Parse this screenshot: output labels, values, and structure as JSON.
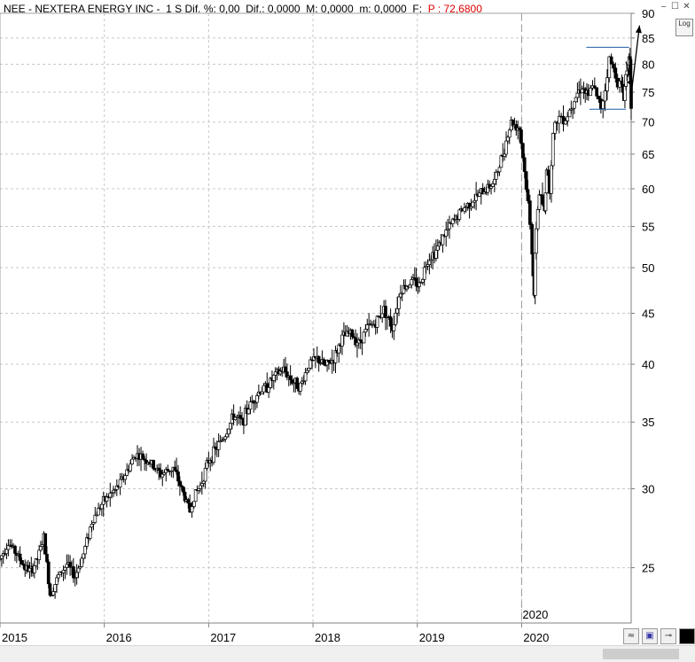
{
  "header": {
    "ticker": "NEE - NEXTERA ENERGY INC -",
    "timeframe": "1 S",
    "dif_pct": "Dif. %: 0,00",
    "dif": "Dif.: 0,0000",
    "max": "M: 0,0000",
    "min": "m: 0,0000",
    "f": "F:",
    "price": "P : 72,6800"
  },
  "controls": {
    "log": "Log"
  },
  "colors": {
    "candles": "#000000",
    "hlines": "#1f5fa8",
    "price": "#e00000",
    "grid": "#c8c8c8"
  },
  "chart_data": {
    "type": "candlestick-line",
    "yscale": "log",
    "ylim": [
      22,
      90
    ],
    "y_ticks": [
      "90",
      "85",
      "80",
      "75",
      "70",
      "65",
      "60",
      "55",
      "50",
      "45",
      "40",
      "35",
      "30",
      "25"
    ],
    "y_tick_values": [
      90,
      85,
      80,
      75,
      70,
      65,
      60,
      55,
      50,
      45,
      40,
      35,
      30,
      25
    ],
    "x_labels": [
      "2015",
      "2016",
      "2017",
      "2018",
      "2019",
      "2020"
    ],
    "x_label_years": [
      2015,
      2016,
      2017,
      2018,
      2019,
      2020.0
    ],
    "xlim": [
      2015.0,
      2021.05
    ],
    "annotation": "2020",
    "annotation_x": 2020.0,
    "hlines": [
      {
        "value": 83.2,
        "x_start": 2020.62,
        "x_end": 2021.03
      },
      {
        "value": 72.1,
        "x_start": 2020.65,
        "x_end": 2021.0
      }
    ],
    "arrow": {
      "points": [
        [
          2021.0,
          80.5
        ],
        [
          2021.06,
          76.0
        ],
        [
          2021.13,
          87.5
        ]
      ]
    },
    "series": [
      {
        "x": [
          2015.0,
          2015.05,
          2015.1,
          2015.15,
          2015.2,
          2015.25,
          2015.3,
          2015.35,
          2015.4,
          2015.45,
          2015.5,
          2015.55,
          2015.6,
          2015.65,
          2015.7,
          2015.75,
          2015.8,
          2015.85,
          2015.9,
          2015.95,
          2016.0,
          2016.05,
          2016.1,
          2016.15,
          2016.2,
          2016.25,
          2016.3,
          2016.35,
          2016.4,
          2016.45,
          2016.5,
          2016.55,
          2016.6,
          2016.65,
          2016.7,
          2016.75,
          2016.8,
          2016.85,
          2016.9,
          2016.95,
          2017.0,
          2017.05,
          2017.1,
          2017.15,
          2017.2,
          2017.25,
          2017.3,
          2017.35,
          2017.4,
          2017.45,
          2017.5,
          2017.55,
          2017.6,
          2017.65,
          2017.7,
          2017.75,
          2017.8,
          2017.85,
          2017.9,
          2017.95,
          2018.0,
          2018.05,
          2018.1,
          2018.15,
          2018.2,
          2018.25,
          2018.3,
          2018.35,
          2018.4,
          2018.45,
          2018.5,
          2018.55,
          2018.6,
          2018.65,
          2018.7,
          2018.75,
          2018.8,
          2018.85,
          2018.9,
          2018.95,
          2019.0,
          2019.05,
          2019.1,
          2019.15,
          2019.2,
          2019.25,
          2019.3,
          2019.35,
          2019.4,
          2019.45,
          2019.5,
          2019.55,
          2019.6,
          2019.65,
          2019.7,
          2019.75,
          2019.8,
          2019.85,
          2019.9,
          2019.95,
          2020.0,
          2020.05,
          2020.1,
          2020.14,
          2020.17,
          2020.2,
          2020.22,
          2020.25,
          2020.3,
          2020.35,
          2020.4,
          2020.45,
          2020.5,
          2020.55,
          2020.6,
          2020.65,
          2020.7,
          2020.75,
          2020.8,
          2020.85,
          2020.9,
          2020.95,
          2021.0,
          2021.03
        ],
        "values": [
          25.5,
          26.5,
          25.8,
          25.0,
          24.8,
          25.5,
          26.8,
          23.5,
          24.5,
          25.2,
          24.5,
          25.8,
          27.8,
          28.8,
          29.5,
          30.0,
          31.0,
          32.5,
          32.0,
          31.0,
          31.5,
          30.0,
          28.5,
          29.5,
          30.2,
          32.0,
          33.0,
          34.0,
          35.5,
          35.0,
          36.5,
          37.5,
          38.0,
          39.0,
          39.5,
          38.5,
          38.0,
          40.0,
          40.5,
          39.8,
          40.5,
          42.5,
          43.0,
          42.0,
          43.5,
          44.0,
          45.5,
          43.5,
          47.5,
          48.0,
          48.5,
          48.0,
          51.0,
          52.0,
          54.0,
          55.5,
          57.0,
          58.0,
          59.0,
          60.0,
          61.0,
          65.0,
          70.0,
          69.0,
          58.0,
          52.0,
          47.0,
          55.0,
          59.5,
          58.0,
          57.0,
          63.0,
          60.0,
          68.0,
          70.5,
          71.0,
          70.5,
          72.0,
          74.5,
          76.0,
          74.0,
          76.5,
          74.0,
          72.5,
          75.5,
          81.0,
          79.0,
          77.0,
          76.0,
          74.0,
          78.0,
          81.0,
          80.0,
          72.68,
          72.7,
          72.7,
          72.7,
          72.7,
          72.7,
          72.7,
          72.7,
          72.7,
          72.7,
          72.7,
          72.7,
          72.7,
          72.7,
          72.7,
          72.7,
          72.7,
          72.7,
          72.7,
          72.7,
          72.7,
          72.7,
          72.7,
          72.7,
          72.7,
          72.7,
          72.7,
          72.7,
          72.7,
          72.7,
          72.7
        ],
        "x_real": [
          2015.0,
          2015.08,
          2015.16,
          2015.24,
          2015.3,
          2015.36,
          2015.42,
          2015.48,
          2015.56,
          2015.64,
          2015.72,
          2015.8,
          2015.88,
          2015.96,
          2016.04,
          2016.12,
          2016.2,
          2016.3,
          2016.42,
          2016.54,
          2016.66,
          2016.74,
          2016.82,
          2016.86,
          2016.92,
          2017.0,
          2017.08,
          2017.16,
          2017.24,
          2017.32,
          2017.4,
          2017.48,
          2017.56,
          2017.64,
          2017.72,
          2017.8,
          2017.88,
          2017.96,
          2018.04,
          2018.12,
          2018.2,
          2018.28,
          2018.36,
          2018.44,
          2018.52,
          2018.6,
          2018.68,
          2018.76,
          2018.84,
          2018.9,
          2018.96,
          2019.02,
          2019.1,
          2019.18,
          2019.26,
          2019.34,
          2019.42,
          2019.5,
          2019.58,
          2019.66,
          2019.74,
          2019.82,
          2019.9,
          2019.98,
          2020.06,
          2020.1,
          2020.12,
          2020.14,
          2020.17,
          2020.2,
          2020.22,
          2020.24,
          2020.27,
          2020.3,
          2020.34,
          2020.38,
          2020.42,
          2020.46,
          2020.52,
          2020.58,
          2020.64,
          2020.68,
          2020.72,
          2020.76,
          2020.8,
          2020.84,
          2020.88,
          2020.92,
          2020.96,
          2020.98,
          2021.0,
          2021.02,
          2021.04,
          2021.05
        ]
      }
    ]
  }
}
